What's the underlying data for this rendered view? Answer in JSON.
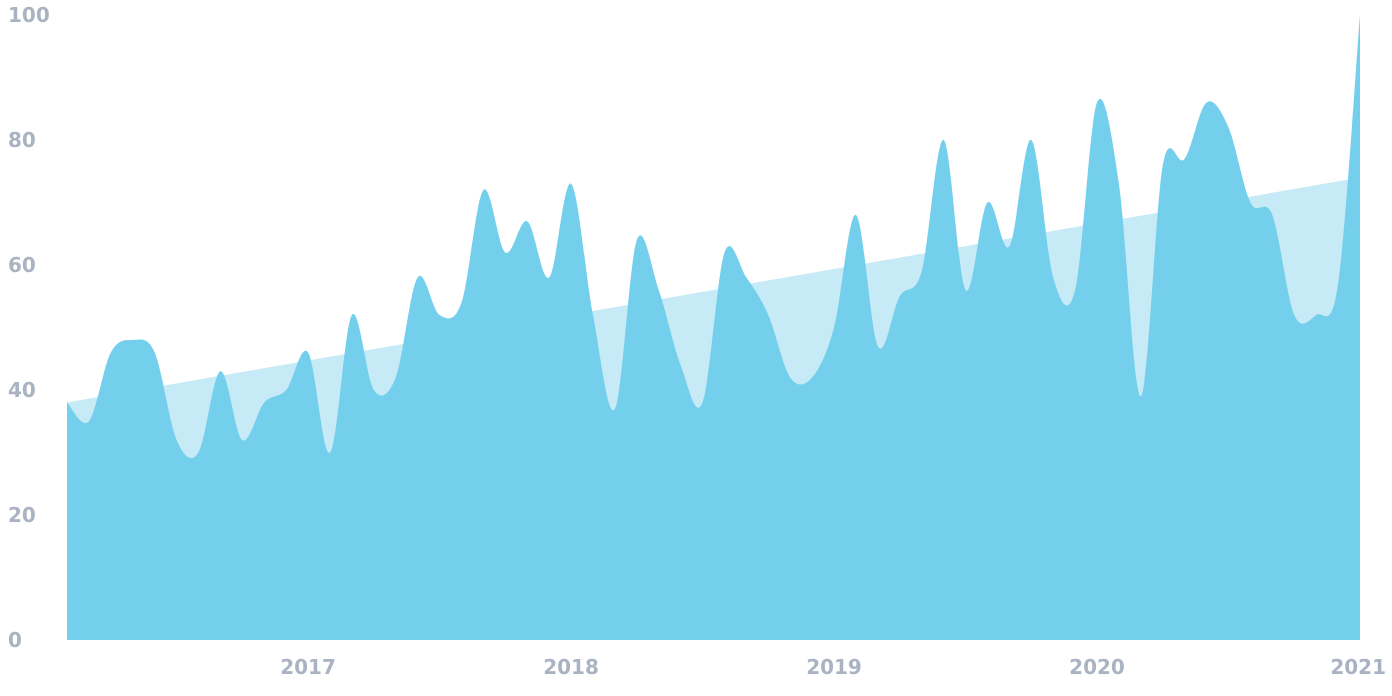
{
  "chart_data": {
    "type": "area",
    "title": "",
    "xlabel": "",
    "ylabel": "",
    "ylim": [
      0,
      100
    ],
    "xlim": [
      "2016-02",
      "2021-01"
    ],
    "y_ticks": [
      0,
      20,
      40,
      60,
      80,
      100
    ],
    "x_ticks": [
      "2017",
      "2018",
      "2019",
      "2020",
      "2021"
    ],
    "grid": false,
    "legend": "none",
    "colors": {
      "actual": "#73cfeb",
      "trend": "#c6eaf6",
      "tick_text": "#aab3c2"
    },
    "series": [
      {
        "x": [
          "2016-02",
          "2016-03",
          "2016-04",
          "2016-05",
          "2016-06",
          "2016-07",
          "2016-08",
          "2016-09",
          "2016-10",
          "2016-11",
          "2016-12",
          "2017-01",
          "2017-02",
          "2017-03",
          "2017-04",
          "2017-05",
          "2017-06",
          "2017-07",
          "2017-08",
          "2017-09",
          "2017-10",
          "2017-11",
          "2017-12",
          "2018-01",
          "2018-02",
          "2018-03",
          "2018-04",
          "2018-05",
          "2018-06",
          "2018-07",
          "2018-08",
          "2018-09",
          "2018-10",
          "2018-11",
          "2018-12",
          "2019-01",
          "2019-02",
          "2019-03",
          "2019-04",
          "2019-05",
          "2019-06",
          "2019-07",
          "2019-08",
          "2019-09",
          "2019-10",
          "2019-11",
          "2019-12",
          "2020-01",
          "2020-02",
          "2020-03",
          "2020-04",
          "2020-05",
          "2020-06",
          "2020-07",
          "2020-08",
          "2020-09",
          "2020-10",
          "2020-11",
          "2020-12",
          "2021-01"
        ],
        "y": [
          38,
          35,
          46,
          48,
          46,
          32,
          30,
          43,
          32,
          38,
          40,
          46,
          30,
          52,
          40,
          42,
          58,
          52,
          54,
          72,
          62,
          67,
          58,
          73,
          52,
          37,
          64,
          56,
          44,
          38,
          62,
          58,
          52,
          42,
          42,
          50,
          68,
          47,
          55,
          59,
          80,
          56,
          70,
          63,
          80,
          58,
          56,
          86,
          73,
          39,
          76,
          77,
          86,
          82,
          70,
          68,
          52,
          52,
          57,
          100
        ]
      },
      {
        "x": [
          "2016-02",
          "2021-01"
        ],
        "y": [
          38,
          74
        ]
      }
    ]
  }
}
